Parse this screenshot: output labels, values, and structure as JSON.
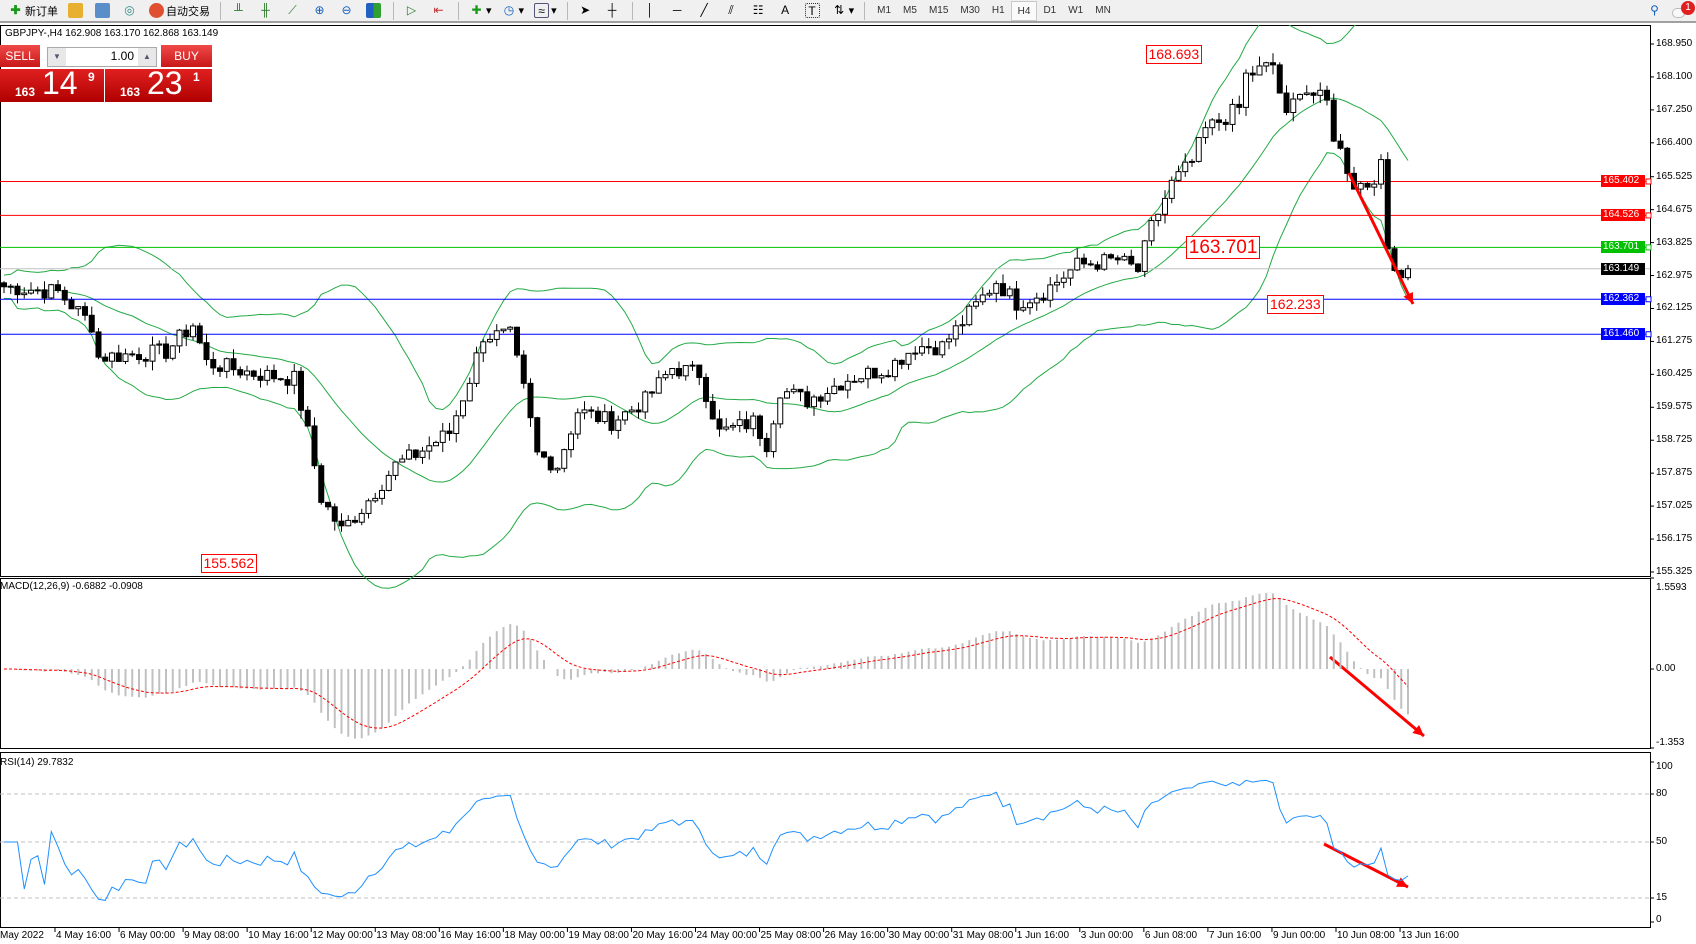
{
  "toolbar": {
    "new_order": "新订单",
    "auto_trading": "自动交易",
    "timeframes": [
      "M1",
      "M5",
      "M15",
      "M30",
      "H1",
      "H4",
      "D1",
      "W1",
      "MN"
    ],
    "active_timeframe": "H4",
    "notification_count": "1"
  },
  "symbol_info": "GBPJPY-,H4  162.908 163.170 162.868 163.149",
  "trade_panel": {
    "sell": "SELL",
    "buy": "BUY",
    "lot": "1.00",
    "sell_price": {
      "prefix": "163",
      "big": "14",
      "pip": "9"
    },
    "buy_price": {
      "prefix": "163",
      "big": "23",
      "pip": "1"
    }
  },
  "price_axis": [
    "168.950",
    "168.100",
    "167.250",
    "166.400",
    "165.525",
    "164.675",
    "163.825",
    "162.975",
    "162.125",
    "161.275",
    "160.425",
    "159.575",
    "158.725",
    "157.875",
    "157.025",
    "156.175",
    "155.325"
  ],
  "levels": [
    {
      "value": "165.402",
      "color": "#ff0000"
    },
    {
      "value": "164.526",
      "color": "#ff0000"
    },
    {
      "value": "163.701",
      "color": "#00c000"
    },
    {
      "value": "163.149",
      "color": "#000000",
      "line": "#c0c0c0"
    },
    {
      "value": "162.362",
      "color": "#0000ff"
    },
    {
      "value": "161.460",
      "color": "#0000ff"
    }
  ],
  "annotations": [
    {
      "text": "168.693",
      "price": 168.693,
      "bar": 178
    },
    {
      "text": "163.701",
      "price": 163.701,
      "bar": 181,
      "big": true
    },
    {
      "text": "162.233",
      "price": 162.233,
      "bar": 196
    },
    {
      "text": "155.562",
      "price": 155.562,
      "bar": 38
    }
  ],
  "price_path": [
    [
      0,
      162.69
    ],
    [
      8,
      162.55
    ],
    [
      13,
      161.71
    ],
    [
      14,
      160.87
    ],
    [
      24,
      161.01
    ],
    [
      28,
      161.71
    ],
    [
      30,
      160.73
    ],
    [
      37,
      160.45
    ],
    [
      43,
      160.31
    ],
    [
      45,
      158.92
    ],
    [
      47,
      157.24
    ],
    [
      50,
      156.4
    ],
    [
      53,
      156.96
    ],
    [
      58,
      158.08
    ],
    [
      61,
      158.36
    ],
    [
      66,
      158.92
    ],
    [
      69,
      160.31
    ],
    [
      71,
      161.43
    ],
    [
      75,
      161.43
    ],
    [
      77,
      160.03
    ],
    [
      79,
      158.36
    ],
    [
      82,
      158.08
    ],
    [
      85,
      159.48
    ],
    [
      90,
      159.2
    ],
    [
      95,
      159.75
    ],
    [
      99,
      160.59
    ],
    [
      103,
      160.45
    ],
    [
      106,
      158.92
    ],
    [
      111,
      159.2
    ],
    [
      113,
      158.64
    ],
    [
      115,
      160.03
    ],
    [
      119,
      159.75
    ],
    [
      125,
      160.31
    ],
    [
      131,
      160.59
    ],
    [
      135,
      161.15
    ],
    [
      139,
      161.15
    ],
    [
      143,
      161.99
    ],
    [
      147,
      162.83
    ],
    [
      150,
      162.27
    ],
    [
      154,
      162.55
    ],
    [
      159,
      163.24
    ],
    [
      165,
      163.38
    ],
    [
      168,
      163.1
    ],
    [
      170,
      164.22
    ],
    [
      173,
      165.34
    ],
    [
      176,
      165.9
    ],
    [
      178,
      166.73
    ],
    [
      183,
      167.29
    ],
    [
      184,
      168.13
    ],
    [
      188,
      168.41
    ],
    [
      190,
      167.01
    ],
    [
      192,
      167.85
    ],
    [
      196,
      167.43
    ],
    [
      197,
      166.6
    ],
    [
      200,
      165.34
    ],
    [
      202,
      165.34
    ],
    [
      204,
      165.76
    ],
    [
      205,
      163.66
    ],
    [
      207,
      162.97
    ],
    [
      208,
      163.149
    ]
  ],
  "macd": {
    "label": "MACD(12,26,9) -0.6882 -0.0908",
    "axis": [
      "1.5593",
      "0.00",
      "-1.353"
    ]
  },
  "rsi": {
    "label": "RSI(14) 29.7832",
    "axis": [
      "100",
      "80",
      "50",
      "15",
      "0"
    ]
  },
  "time_axis": [
    "May 2022",
    "4 May 16:00",
    "6 May 00:00",
    "9 May 08:00",
    "10 May 16:00",
    "12 May 00:00",
    "13 May 08:00",
    "16 May 16:00",
    "18 May 00:00",
    "19 May 08:00",
    "20 May 16:00",
    "24 May 00:00",
    "25 May 08:00",
    "26 May 16:00",
    "30 May 00:00",
    "31 May 08:00",
    "1 Jun 16:00",
    "3 Jun 00:00",
    "6 Jun 08:00",
    "7 Jun 16:00",
    "9 Jun 00:00",
    "10 Jun 08:00",
    "13 Jun 16:00"
  ],
  "colors": {
    "bands": "#22aa44",
    "rsi": "#1e90ff",
    "signal": "#ff0000",
    "histogram": "#c0c0c0",
    "arrow": "#ff0000"
  }
}
